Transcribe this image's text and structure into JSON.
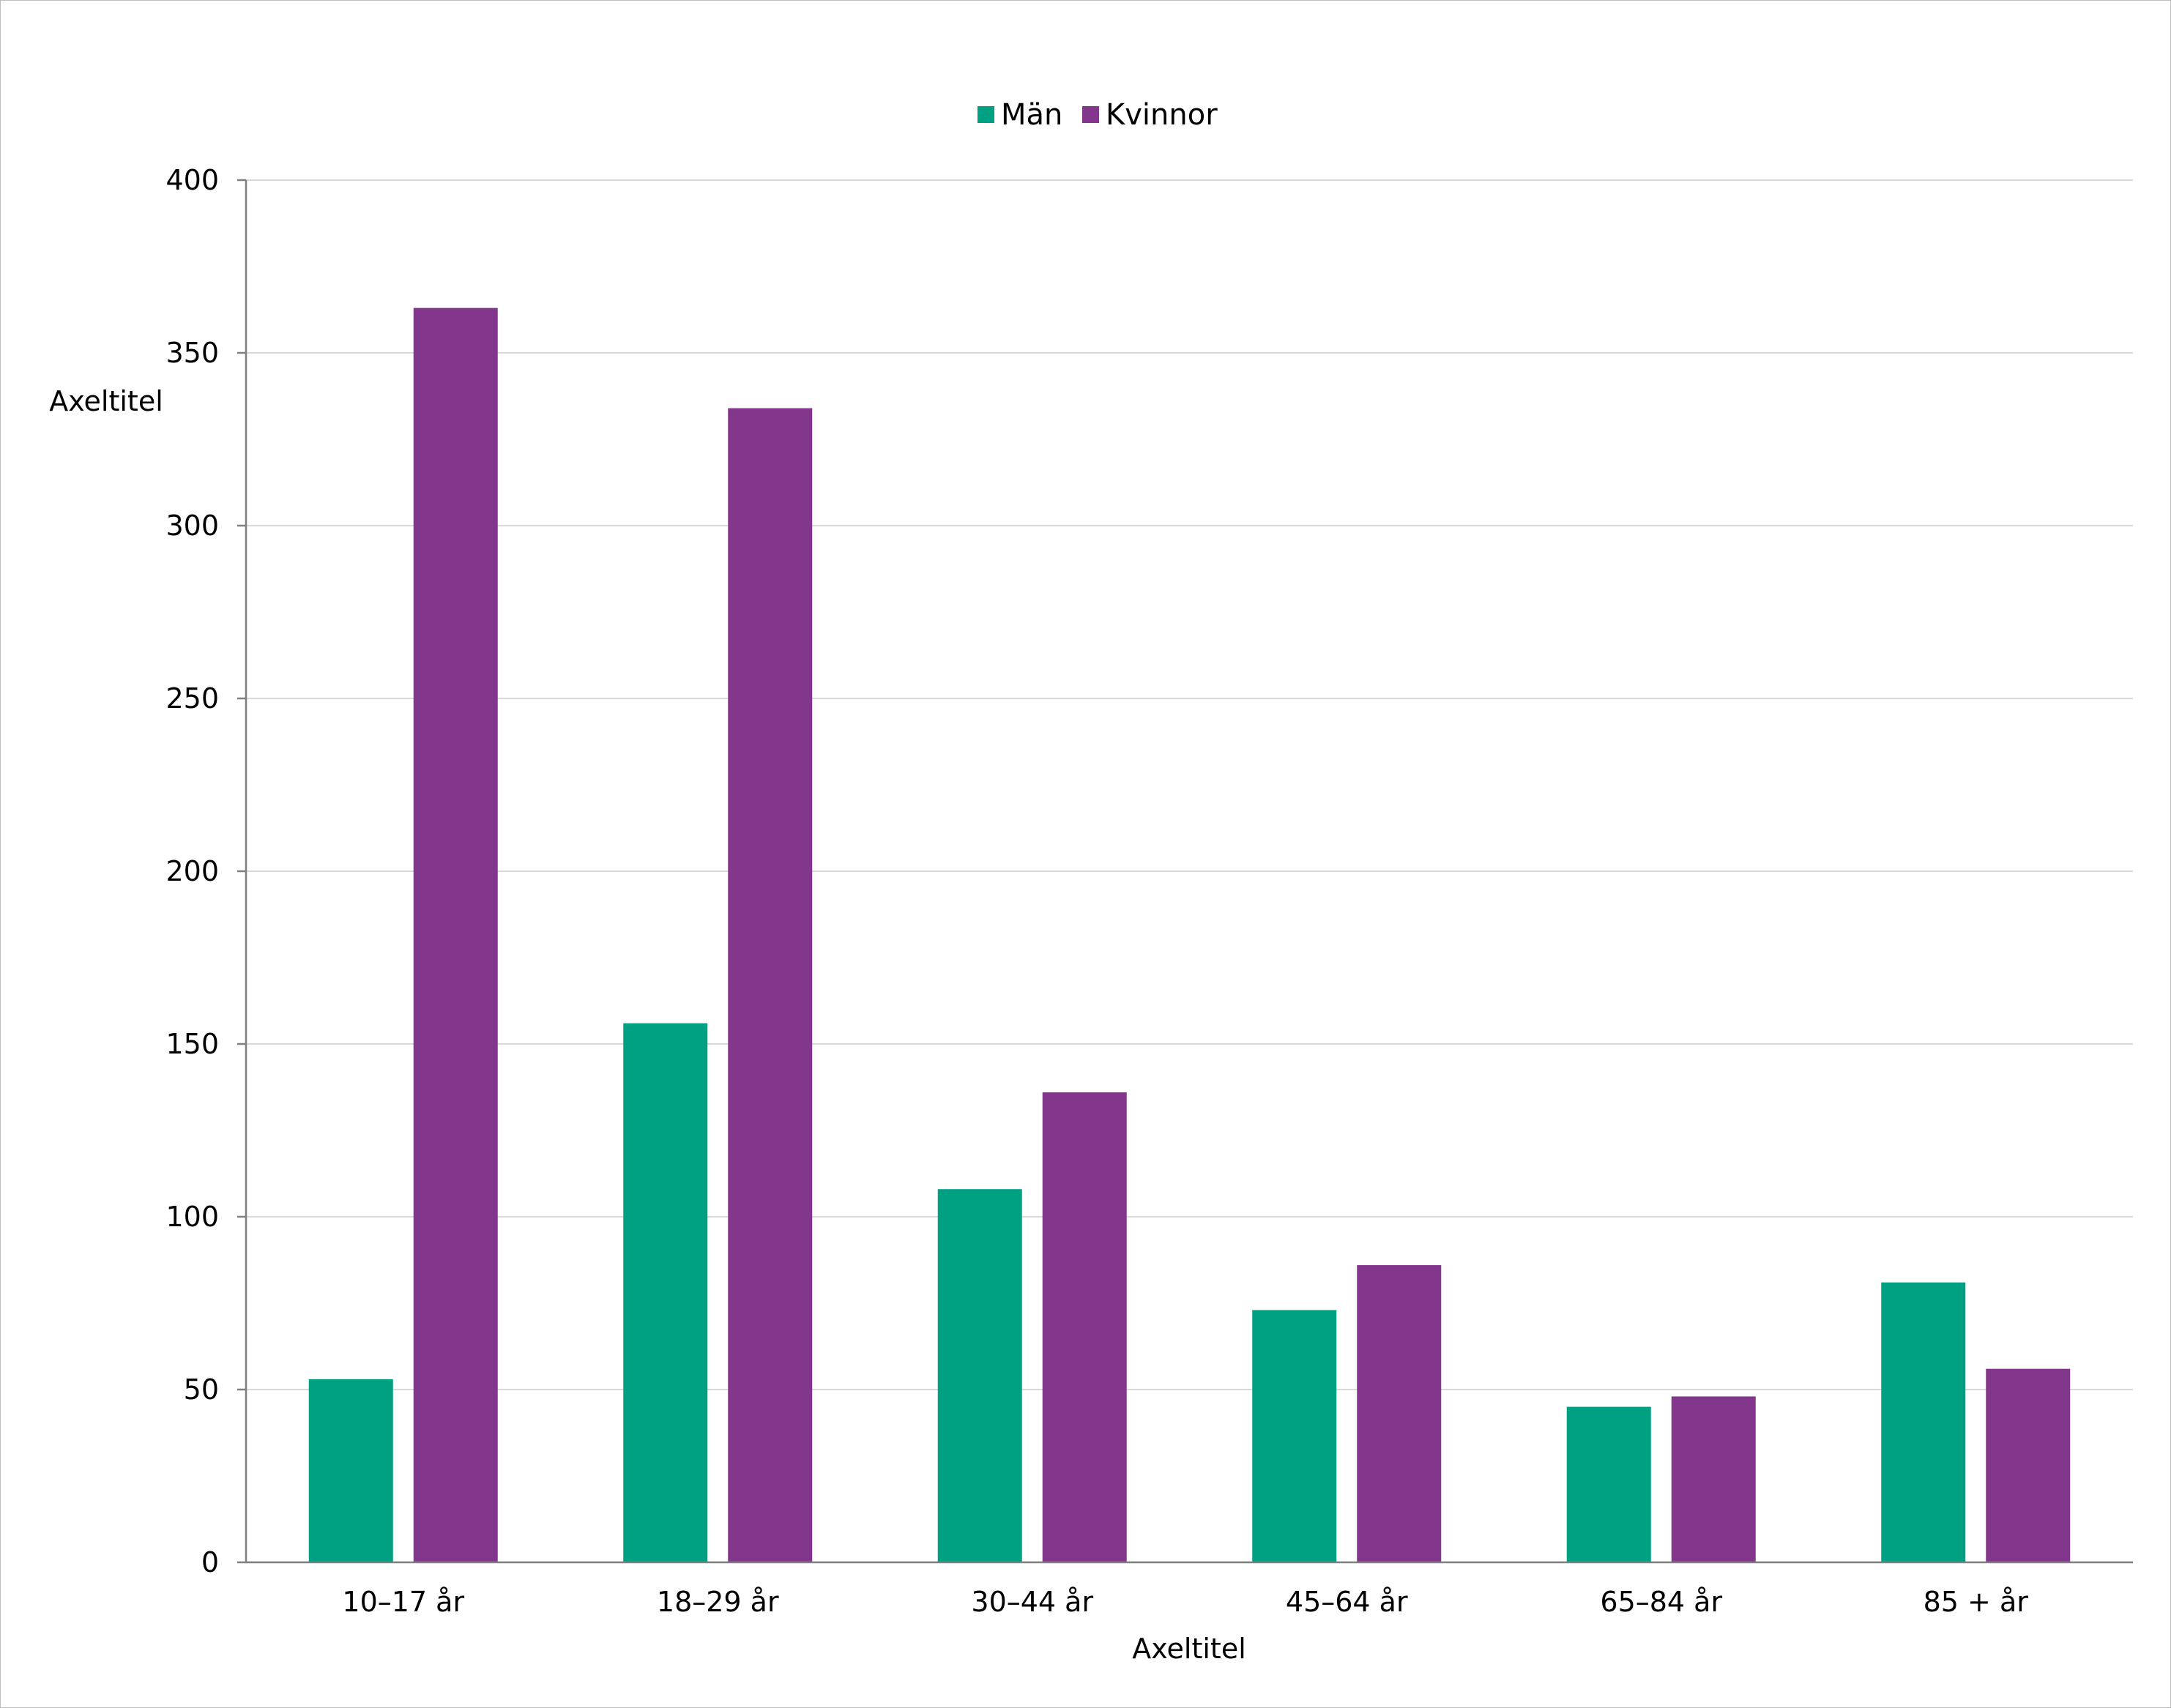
{
  "chart_data": {
    "type": "bar",
    "categories": [
      "10–17 år",
      "18–29 år",
      "30–44 år",
      "45–64 år",
      "65–84 år",
      "85 + år"
    ],
    "series": [
      {
        "name": "Män",
        "color": "#00a082",
        "values": [
          53,
          156,
          108,
          73,
          45,
          81
        ]
      },
      {
        "name": "Kvinnor",
        "color": "#82378c",
        "values": [
          363,
          334,
          136,
          86,
          48,
          56
        ]
      }
    ],
    "title": "",
    "xlabel": "Axeltitel",
    "ylabel": "Axeltitel",
    "ylim": [
      0,
      400
    ],
    "yticks": [
      0,
      50,
      100,
      150,
      200,
      250,
      300,
      350,
      400
    ],
    "grid": true,
    "legend_position": "top-center"
  }
}
